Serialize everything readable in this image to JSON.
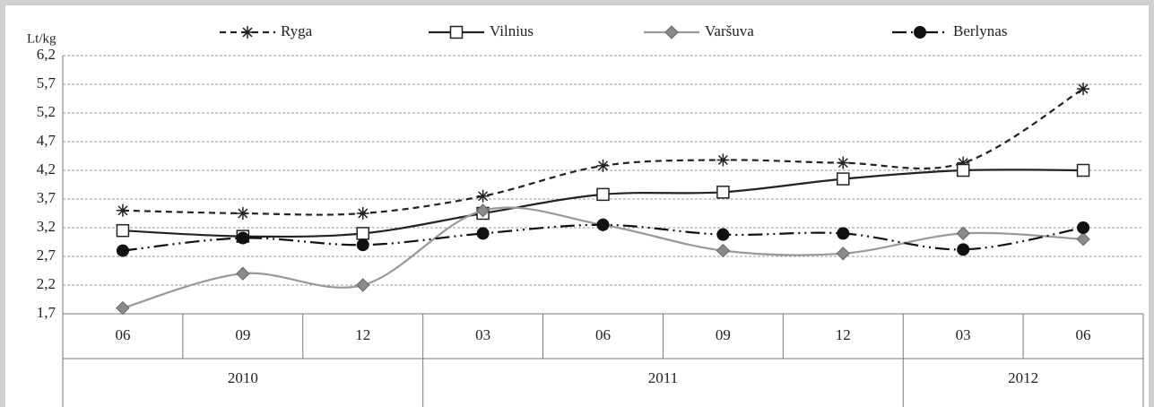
{
  "chart_data": {
    "type": "line",
    "y_label": "Lt/kg",
    "categories": [
      "06",
      "09",
      "12",
      "03",
      "06",
      "09",
      "12",
      "03",
      "06"
    ],
    "group_labels": [
      "2010",
      null,
      null,
      "2011",
      null,
      null,
      null,
      "2012",
      null
    ],
    "ylim": [
      1.7,
      6.2
    ],
    "yticks": [
      {
        "value": 1.7,
        "label": "1,7"
      },
      {
        "value": 2.2,
        "label": "2,2"
      },
      {
        "value": 2.7,
        "label": "2,7"
      },
      {
        "value": 3.2,
        "label": "3,2"
      },
      {
        "value": 3.7,
        "label": "3,7"
      },
      {
        "value": 4.2,
        "label": "4,2"
      },
      {
        "value": 4.7,
        "label": "4,7"
      },
      {
        "value": 5.2,
        "label": "5,2"
      },
      {
        "value": 5.7,
        "label": "5,7"
      },
      {
        "value": 6.2,
        "label": "6,2"
      }
    ],
    "grid": true,
    "legend": "top",
    "series": [
      {
        "name": "Ryga",
        "color": "#222222",
        "dash": "7 5",
        "marker": "asterisk",
        "values": [
          3.5,
          3.45,
          3.45,
          3.75,
          4.28,
          4.38,
          4.33,
          4.33,
          5.62
        ]
      },
      {
        "name": "Vilnius",
        "color": "#222222",
        "dash": "none",
        "marker": "square",
        "values": [
          3.15,
          3.05,
          3.1,
          3.45,
          3.78,
          3.82,
          4.05,
          4.2,
          4.2
        ]
      },
      {
        "name": "Varšuva",
        "color": "#999999",
        "dash": "none",
        "marker": "diamond",
        "values": [
          1.8,
          2.4,
          2.2,
          3.5,
          3.25,
          2.8,
          2.75,
          3.1,
          3.0
        ]
      },
      {
        "name": "Berlynas",
        "color": "#111111",
        "dash": "16 5 2 5 2 5",
        "marker": "circle",
        "values": [
          2.8,
          3.02,
          2.9,
          3.1,
          3.25,
          3.08,
          3.1,
          2.82,
          3.2
        ]
      }
    ]
  }
}
